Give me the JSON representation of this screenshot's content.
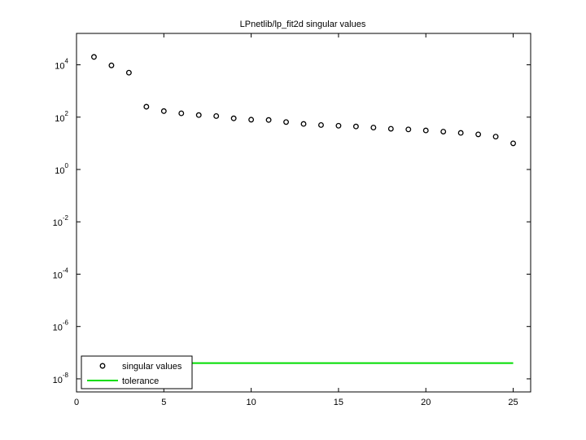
{
  "chart_data": {
    "type": "scatter",
    "title": "LPnetlib/lp_fit2d singular values",
    "xlabel": "",
    "ylabel": "",
    "xlim": [
      0,
      26
    ],
    "ylim_exponent": [
      -8.5,
      5.2
    ],
    "y_scale": "log",
    "x_ticks": [
      0,
      5,
      10,
      15,
      20,
      25
    ],
    "y_ticks": [
      {
        "base": "10",
        "exp": "4",
        "value_exp": 4
      },
      {
        "base": "10",
        "exp": "2",
        "value_exp": 2
      },
      {
        "base": "10",
        "exp": "0",
        "value_exp": 0
      },
      {
        "base": "10",
        "exp": "-2",
        "value_exp": -2
      },
      {
        "base": "10",
        "exp": "-4",
        "value_exp": -4
      },
      {
        "base": "10",
        "exp": "-6",
        "value_exp": -6
      },
      {
        "base": "10",
        "exp": "-8",
        "value_exp": -8
      }
    ],
    "grid": false,
    "legend_position": "bottom-left",
    "series": [
      {
        "name": "singular values",
        "marker": "circle",
        "color": "#000000",
        "x": [
          1,
          2,
          3,
          4,
          5,
          6,
          7,
          8,
          9,
          10,
          11,
          12,
          13,
          14,
          15,
          16,
          17,
          18,
          19,
          20,
          21,
          22,
          23,
          24,
          25
        ],
        "y": [
          20000,
          9500,
          5000,
          250,
          170,
          140,
          120,
          110,
          90,
          80,
          78,
          65,
          55,
          50,
          47,
          44,
          40,
          36,
          34,
          31,
          28,
          25,
          22,
          18,
          10
        ]
      },
      {
        "name": "tolerance",
        "marker": "line",
        "color": "#00dd00",
        "x": [
          1,
          25
        ],
        "y": [
          4e-08,
          4e-08
        ]
      }
    ]
  }
}
